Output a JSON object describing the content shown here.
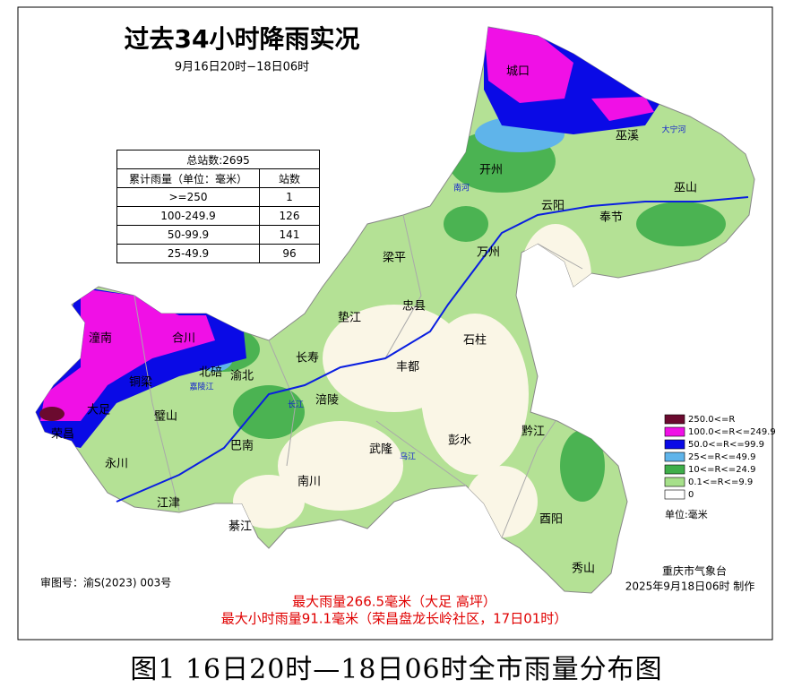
{
  "title": "过去34小时降雨实况",
  "subtitle": "9月16日20时−18日06时",
  "table": {
    "total": "总站数:2695",
    "columns": [
      "累计雨量（单位：毫米）",
      "站数"
    ],
    "rows": [
      [
        ">=250",
        1
      ],
      [
        "100-249.9",
        126
      ],
      [
        "50-99.9",
        141
      ],
      [
        "25-49.9",
        96
      ]
    ]
  },
  "legend": {
    "items": [
      {
        "label": "250.0<=R",
        "color": "#6b0a2f"
      },
      {
        "label": "100.0<=R<=249.9",
        "color": "#f010e6"
      },
      {
        "label": "50.0<=R<=99.9",
        "color": "#0a0ae6"
      },
      {
        "label": "25<=R<=49.9",
        "color": "#5fb4ea"
      },
      {
        "label": "10<=R<=24.9",
        "color": "#3fae4a"
      },
      {
        "label": "0.1<=R<=9.9",
        "color": "#a6e08a"
      },
      {
        "label": "0",
        "color": "#ffffff"
      }
    ],
    "unit": "单位:毫米"
  },
  "places": [
    "城口",
    "巫溪",
    "开州",
    "云阳",
    "巫山",
    "奉节",
    "梁平",
    "万州",
    "忠县",
    "垫江",
    "石柱",
    "长寿",
    "丰都",
    "涪陵",
    "北碚",
    "渝北",
    "潼南",
    "合川",
    "铜梁",
    "大足",
    "璧山",
    "永川",
    "江津",
    "巴南",
    "南川",
    "武隆",
    "彭水",
    "黔江",
    "酉阳",
    "秀山",
    "綦江",
    "荣昌"
  ],
  "rivers": [
    "大宁河",
    "长江",
    "乌江",
    "嘉陵江",
    "南河"
  ],
  "approval": "审图号：渝S(2023) 003号",
  "issuer": "重庆市气象台",
  "issue_time": "2025年9月18日06时 制作",
  "max_rain": "最大雨量266.5毫米（大足 高坪）",
  "max_hourly": "最大小时雨量91.1毫米（荣昌盘龙长岭社区，17日01时）",
  "caption": "图1  16日20时—18日06时全市雨量分布图"
}
